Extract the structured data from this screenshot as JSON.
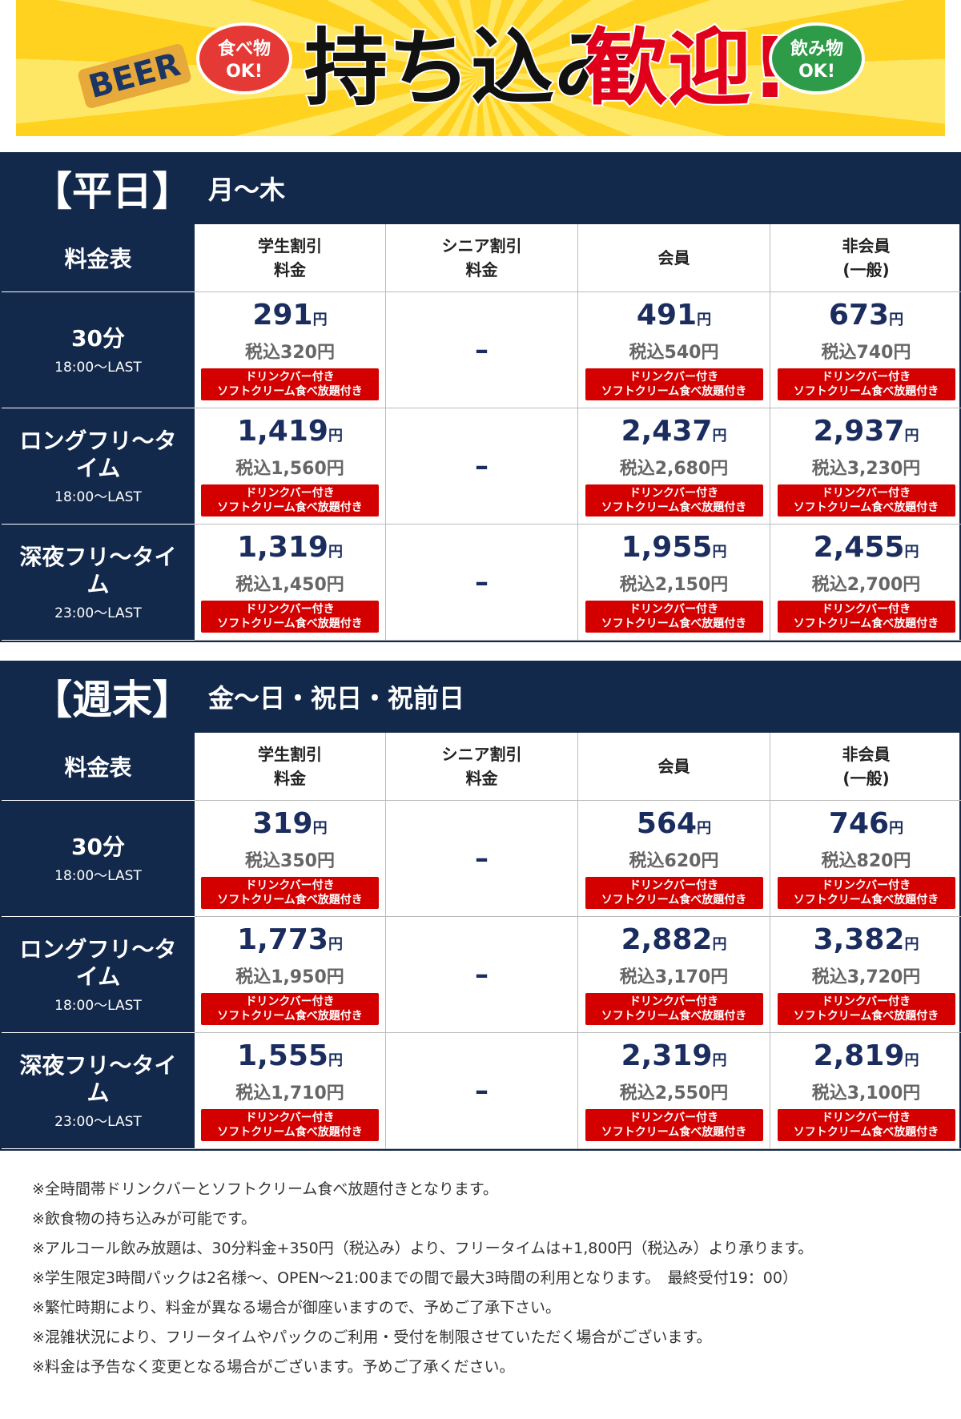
{
  "banner": {
    "food": [
      "食べ物",
      "OK!"
    ],
    "title_black": "持ち込み",
    "title_red": "歓迎!",
    "drink": [
      "飲み物",
      "OK!"
    ],
    "beer": "BEER"
  },
  "sections": [
    {
      "title": "【平日】",
      "days": "月〜木",
      "corner": "料金表",
      "columns": [
        [
          "学生割引",
          "料金"
        ],
        [
          "シニア割引",
          "料金"
        ],
        [
          "会員"
        ],
        [
          "非会員",
          "(一般)"
        ]
      ],
      "rows": [
        {
          "name": "30分",
          "time": "18:00〜LAST",
          "cells": [
            {
              "price": "291",
              "unit": "円",
              "tax": "税込320円",
              "badge": [
                "ドリンクバー付き",
                "ソフトクリーム食べ放題付き"
              ]
            },
            {
              "dash": "–"
            },
            {
              "price": "491",
              "unit": "円",
              "tax": "税込540円",
              "badge": [
                "ドリンクバー付き",
                "ソフトクリーム食べ放題付き"
              ]
            },
            {
              "price": "673",
              "unit": "円",
              "tax": "税込740円",
              "badge": [
                "ドリンクバー付き",
                "ソフトクリーム食べ放題付き"
              ]
            }
          ]
        },
        {
          "name": "ロングフリ〜タイム",
          "time": "18:00〜LAST",
          "cells": [
            {
              "price": "1,419",
              "unit": "円",
              "tax": "税込1,560円",
              "badge": [
                "ドリンクバー付き",
                "ソフトクリーム食べ放題付き"
              ]
            },
            {
              "dash": "–"
            },
            {
              "price": "2,437",
              "unit": "円",
              "tax": "税込2,680円",
              "badge": [
                "ドリンクバー付き",
                "ソフトクリーム食べ放題付き"
              ]
            },
            {
              "price": "2,937",
              "unit": "円",
              "tax": "税込3,230円",
              "badge": [
                "ドリンクバー付き",
                "ソフトクリーム食べ放題付き"
              ]
            }
          ]
        },
        {
          "name": "深夜フリ〜タイム",
          "time": "23:00〜LAST",
          "cells": [
            {
              "price": "1,319",
              "unit": "円",
              "tax": "税込1,450円",
              "badge": [
                "ドリンクバー付き",
                "ソフトクリーム食べ放題付き"
              ]
            },
            {
              "dash": "–"
            },
            {
              "price": "1,955",
              "unit": "円",
              "tax": "税込2,150円",
              "badge": [
                "ドリンクバー付き",
                "ソフトクリーム食べ放題付き"
              ]
            },
            {
              "price": "2,455",
              "unit": "円",
              "tax": "税込2,700円",
              "badge": [
                "ドリンクバー付き",
                "ソフトクリーム食べ放題付き"
              ]
            }
          ]
        }
      ]
    },
    {
      "title": "【週末】",
      "days": "金〜日・祝日・祝前日",
      "corner": "料金表",
      "columns": [
        [
          "学生割引",
          "料金"
        ],
        [
          "シニア割引",
          "料金"
        ],
        [
          "会員"
        ],
        [
          "非会員",
          "(一般)"
        ]
      ],
      "rows": [
        {
          "name": "30分",
          "time": "18:00〜LAST",
          "cells": [
            {
              "price": "319",
              "unit": "円",
              "tax": "税込350円",
              "badge": [
                "ドリンクバー付き",
                "ソフトクリーム食べ放題付き"
              ]
            },
            {
              "dash": "–"
            },
            {
              "price": "564",
              "unit": "円",
              "tax": "税込620円",
              "badge": [
                "ドリンクバー付き",
                "ソフトクリーム食べ放題付き"
              ]
            },
            {
              "price": "746",
              "unit": "円",
              "tax": "税込820円",
              "badge": [
                "ドリンクバー付き",
                "ソフトクリーム食べ放題付き"
              ]
            }
          ]
        },
        {
          "name": "ロングフリ〜タイム",
          "time": "18:00〜LAST",
          "cells": [
            {
              "price": "1,773",
              "unit": "円",
              "tax": "税込1,950円",
              "badge": [
                "ドリンクバー付き",
                "ソフトクリーム食べ放題付き"
              ]
            },
            {
              "dash": "–"
            },
            {
              "price": "2,882",
              "unit": "円",
              "tax": "税込3,170円",
              "badge": [
                "ドリンクバー付き",
                "ソフトクリーム食べ放題付き"
              ]
            },
            {
              "price": "3,382",
              "unit": "円",
              "tax": "税込3,720円",
              "badge": [
                "ドリンクバー付き",
                "ソフトクリーム食べ放題付き"
              ]
            }
          ]
        },
        {
          "name": "深夜フリ〜タイム",
          "time": "23:00〜LAST",
          "cells": [
            {
              "price": "1,555",
              "unit": "円",
              "tax": "税込1,710円",
              "badge": [
                "ドリンクバー付き",
                "ソフトクリーム食べ放題付き"
              ]
            },
            {
              "dash": "–"
            },
            {
              "price": "2,319",
              "unit": "円",
              "tax": "税込2,550円",
              "badge": [
                "ドリンクバー付き",
                "ソフトクリーム食べ放題付き"
              ]
            },
            {
              "price": "2,819",
              "unit": "円",
              "tax": "税込3,100円",
              "badge": [
                "ドリンクバー付き",
                "ソフトクリーム食べ放題付き"
              ]
            }
          ]
        }
      ]
    }
  ],
  "notes": [
    "※全時間帯ドリンクバーとソフトクリーム食べ放題付きとなります。",
    "※飲食物の持ち込みが可能です。",
    "※アルコール飲み放題は、30分料金+350円（税込み）より、フリータイムは+1,800円（税込み）より承ります。",
    "※学生限定3時間パックは2名様〜、OPEN〜21:00までの間で最大3時間の利用となります。　最終受付19：00）",
    "※繁忙時期により、料金が異なる場合が御座いますので、予めご了承下さい。",
    "※混雑状況により、フリータイムやパックのご利用・受付を制限させていただく場合がございます。",
    "※料金は予告なく変更となる場合がございます。予めご了承ください。"
  ]
}
